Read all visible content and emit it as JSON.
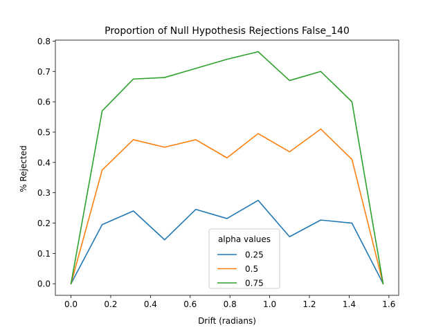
{
  "chart_data": {
    "type": "line",
    "title": "Proportion of Null Hypothesis Rejections False_140",
    "xlabel": "Drift (radians)",
    "ylabel": "% Rejected",
    "xlim": [
      -0.0785,
      1.6493
    ],
    "ylim": [
      -0.03825,
      0.80325
    ],
    "xticks": [
      0.0,
      0.2,
      0.4,
      0.6,
      0.8,
      1.0,
      1.2,
      1.4,
      1.6
    ],
    "xtick_labels": [
      "0.0",
      "0.2",
      "0.4",
      "0.6",
      "0.8",
      "1.0",
      "1.2",
      "1.4",
      "1.6"
    ],
    "yticks": [
      0.0,
      0.1,
      0.2,
      0.3,
      0.4,
      0.5,
      0.6,
      0.7,
      0.8
    ],
    "ytick_labels": [
      "0.0",
      "0.1",
      "0.2",
      "0.3",
      "0.4",
      "0.5",
      "0.6",
      "0.7",
      "0.8"
    ],
    "grid": false,
    "legend": {
      "title": "alpha values",
      "placement": "lower-center"
    },
    "x": [
      0.0,
      0.157,
      0.314,
      0.471,
      0.628,
      0.785,
      0.942,
      1.1,
      1.257,
      1.414,
      1.571
    ],
    "series": [
      {
        "name": "0.25",
        "color": "#1f77b4",
        "values": [
          0.0,
          0.195,
          0.24,
          0.145,
          0.245,
          0.215,
          0.275,
          0.155,
          0.21,
          0.2,
          0.0
        ]
      },
      {
        "name": "0.5",
        "color": "#ff7f0e",
        "values": [
          0.0,
          0.375,
          0.475,
          0.45,
          0.475,
          0.415,
          0.495,
          0.435,
          0.51,
          0.41,
          0.0
        ]
      },
      {
        "name": "0.75",
        "color": "#2ca02c",
        "values": [
          0.0,
          0.57,
          0.675,
          0.68,
          0.71,
          0.74,
          0.765,
          0.67,
          0.7,
          0.6,
          0.0
        ]
      }
    ]
  }
}
